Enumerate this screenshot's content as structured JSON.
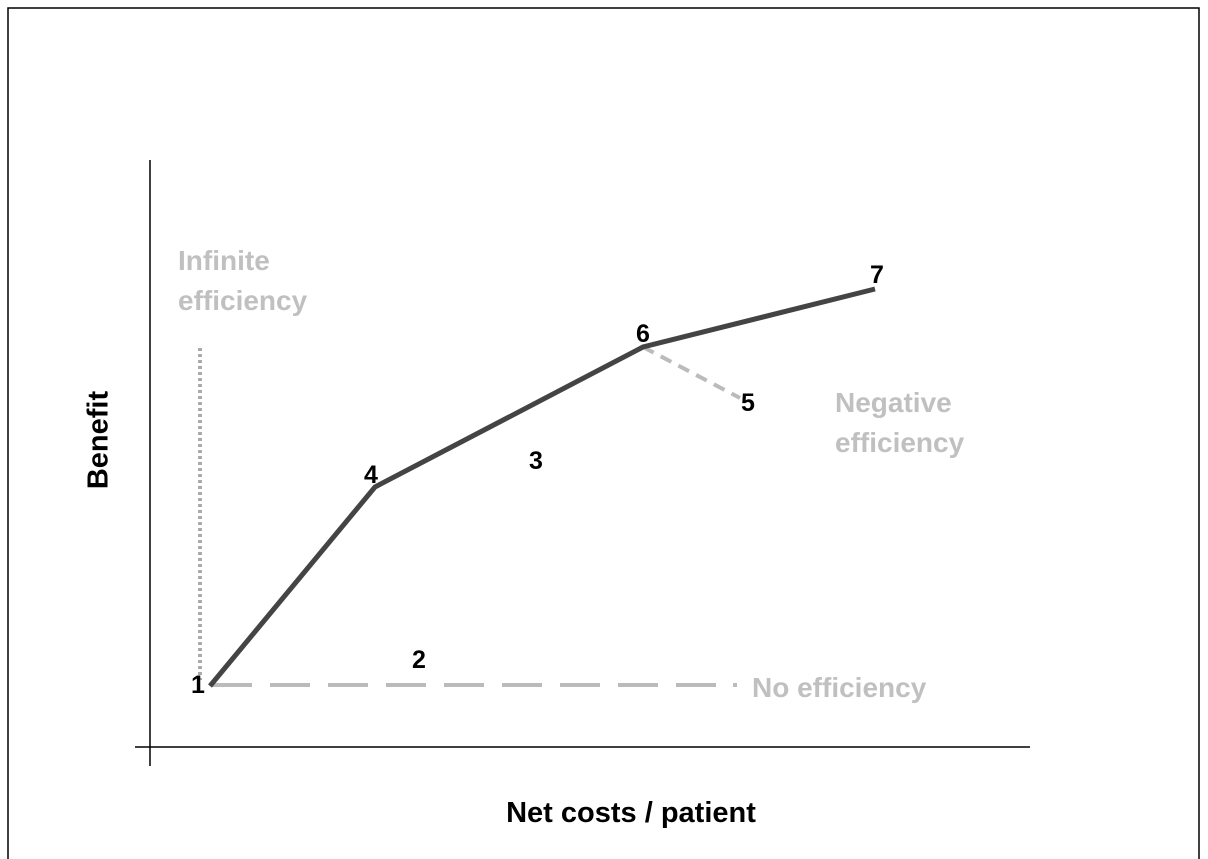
{
  "axes": {
    "x_label": "Net costs / patient",
    "y_label": "Benefit"
  },
  "annotations": [
    {
      "lines": [
        "Infinite",
        "efficiency"
      ]
    },
    {
      "lines": [
        "Negative",
        "efficiency"
      ]
    },
    {
      "lines": [
        "No efficiency"
      ]
    }
  ],
  "nodes": [
    {
      "label": "1"
    },
    {
      "label": "2"
    },
    {
      "label": "3"
    },
    {
      "label": "4"
    },
    {
      "label": "5"
    },
    {
      "label": "6"
    },
    {
      "label": "7"
    }
  ]
}
